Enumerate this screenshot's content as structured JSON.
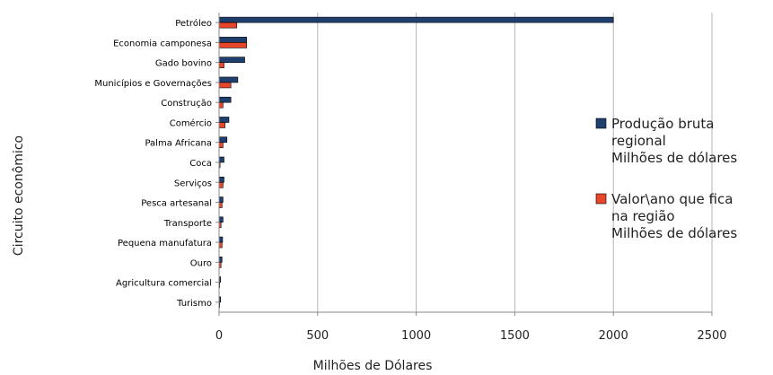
{
  "chart_data": {
    "type": "bar",
    "orientation": "horizontal",
    "title": "",
    "xlabel": "Milhões de Dólares",
    "ylabel": "Circuito econômico",
    "xlim": [
      0,
      2500
    ],
    "xticks": [
      0,
      500,
      1000,
      1500,
      2000,
      2500
    ],
    "grid": "vertical",
    "legend_position": "right",
    "categories": [
      "Petróleo",
      "Economia camponesa",
      "Gado bovino",
      "Municípios e Governações",
      "Construção",
      "Comércio",
      "Palma Africana",
      "Coca",
      "Serviços",
      "Pesca artesanal",
      "Transporte",
      "Pequena manufatura",
      "Ouro",
      "Agricultura comercial",
      "Turismo"
    ],
    "series": [
      {
        "name_lines": [
          "Produção bruta",
          "regional",
          "Milhões de dólares"
        ],
        "color": "#1f3f6e",
        "values": [
          2000,
          140,
          130,
          95,
          60,
          50,
          40,
          25,
          25,
          20,
          20,
          18,
          15,
          8,
          8
        ]
      },
      {
        "name_lines": [
          "Valor\\ano que fica",
          "na região",
          "Milhões de dólares"
        ],
        "color": "#e8462a",
        "values": [
          90,
          140,
          25,
          60,
          20,
          30,
          20,
          5,
          20,
          15,
          10,
          15,
          10,
          3,
          3
        ]
      }
    ]
  }
}
